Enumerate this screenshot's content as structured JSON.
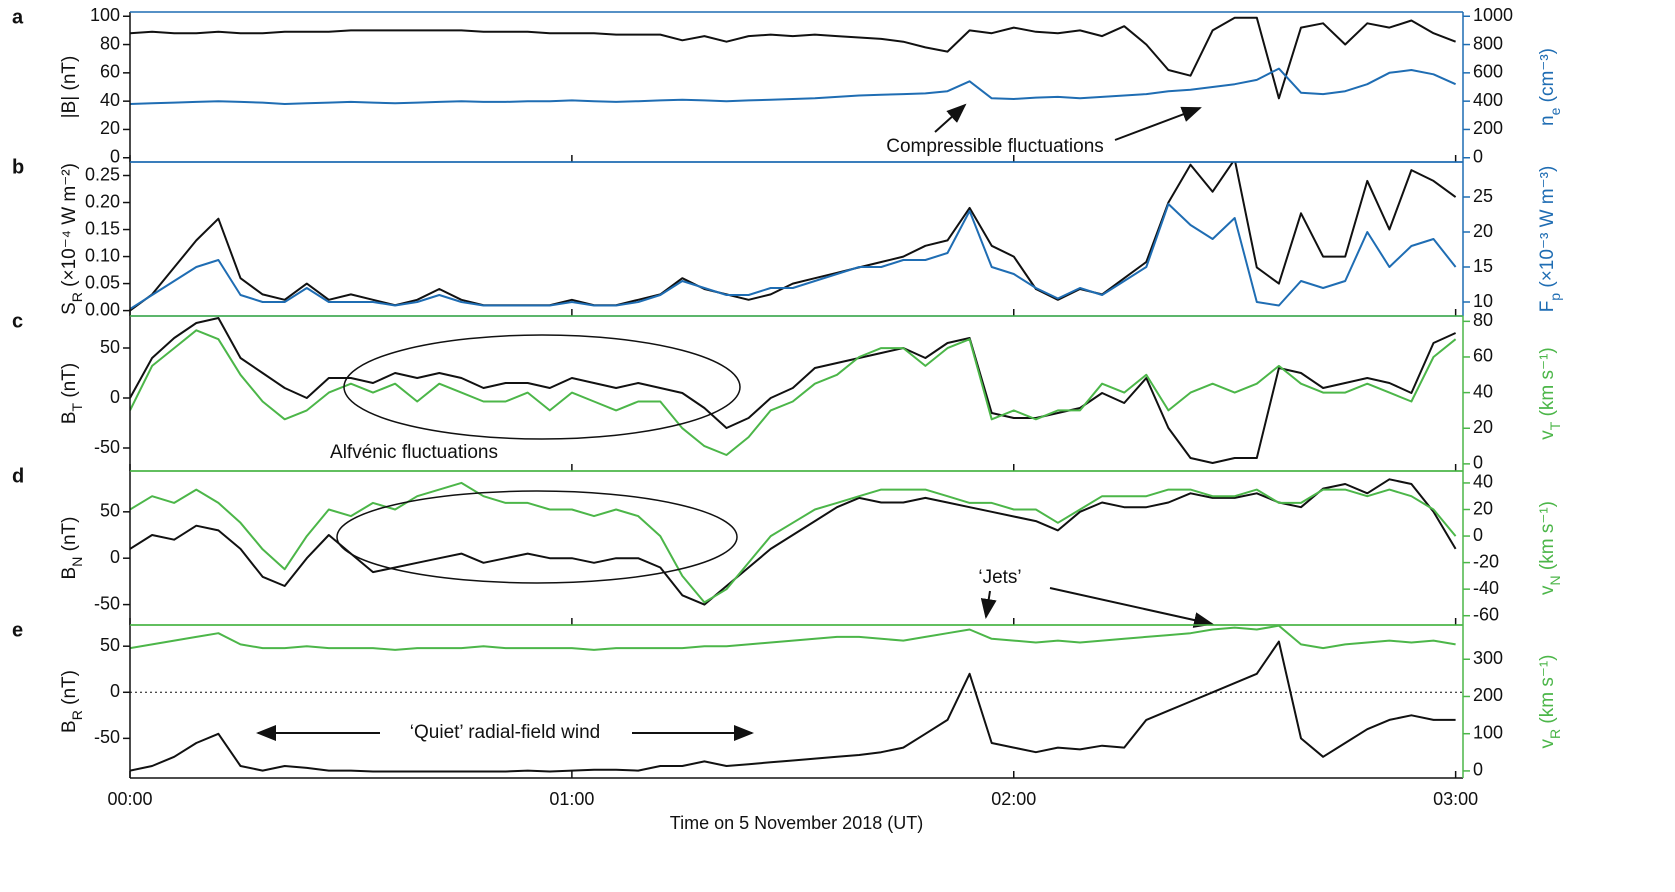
{
  "chart_data": [
    {
      "type": "line",
      "panel": "a",
      "ylabel": [
        "|B| (nT)"
      ],
      "y2label": [
        "n",
        "e",
        " (cm⁻³)"
      ],
      "x": [
        0,
        3,
        6,
        9,
        12,
        15,
        18,
        21,
        24,
        27,
        30,
        33,
        36,
        39,
        42,
        45,
        48,
        51,
        54,
        57,
        60,
        63,
        66,
        69,
        72,
        75,
        78,
        81,
        84,
        87,
        90,
        93,
        96,
        99,
        102,
        105,
        108,
        111,
        114,
        117,
        120,
        123,
        126,
        129,
        132,
        135,
        138,
        141,
        144,
        147,
        150,
        153,
        156,
        159,
        162,
        165,
        168,
        171,
        174,
        177,
        180
      ],
      "xlim": [
        0,
        181
      ],
      "xticks": [
        0,
        60,
        120,
        180
      ],
      "ylim": [
        -3,
        103
      ],
      "yticks": [
        0,
        20,
        40,
        60,
        80,
        100
      ],
      "y2lim": [
        -30,
        1030
      ],
      "y2ticks": [
        0,
        200,
        400,
        600,
        800,
        1000
      ],
      "y2color": "#1f6db3",
      "series": [
        {
          "color": "#111111",
          "values": [
            88,
            89,
            88,
            88,
            89,
            88,
            88,
            89,
            89,
            89,
            90,
            90,
            90,
            90,
            90,
            90,
            89,
            89,
            89,
            88,
            88,
            88,
            87,
            87,
            87,
            83,
            86,
            82,
            86,
            87,
            86,
            87,
            86,
            85,
            84,
            82,
            78,
            75,
            90,
            88,
            92,
            89,
            88,
            90,
            86,
            93,
            80,
            62,
            58,
            90,
            99,
            99,
            42,
            92,
            95,
            80,
            95,
            92,
            97,
            88,
            82
          ]
        },
        {
          "color": "#1f6db3",
          "axis": "y2",
          "values": [
            380,
            385,
            390,
            395,
            400,
            395,
            390,
            380,
            385,
            390,
            395,
            390,
            385,
            390,
            395,
            400,
            395,
            395,
            400,
            400,
            405,
            400,
            395,
            400,
            405,
            410,
            405,
            400,
            405,
            410,
            415,
            420,
            430,
            440,
            445,
            450,
            455,
            470,
            540,
            420,
            415,
            425,
            430,
            420,
            430,
            440,
            450,
            470,
            480,
            500,
            520,
            550,
            630,
            460,
            450,
            470,
            520,
            600,
            620,
            590,
            520
          ]
        }
      ],
      "annotations": [
        "Compressible fluctuations"
      ]
    },
    {
      "type": "line",
      "panel": "b",
      "ylabel": [
        "S",
        "R",
        " (×10⁻⁴ W m⁻²)"
      ],
      "y2label": [
        "F",
        "p",
        " (×10⁻³ W m⁻³)"
      ],
      "x": [
        0,
        3,
        6,
        9,
        12,
        15,
        18,
        21,
        24,
        27,
        30,
        33,
        36,
        39,
        42,
        45,
        48,
        51,
        54,
        57,
        60,
        63,
        66,
        69,
        72,
        75,
        78,
        81,
        84,
        87,
        90,
        93,
        96,
        99,
        102,
        105,
        108,
        111,
        114,
        117,
        120,
        123,
        126,
        129,
        132,
        135,
        138,
        141,
        144,
        147,
        150,
        153,
        156,
        159,
        162,
        165,
        168,
        171,
        174,
        177,
        180
      ],
      "xlim": [
        0,
        181
      ],
      "xticks": [
        0,
        60,
        120,
        180
      ],
      "ylim": [
        -0.01,
        0.275
      ],
      "yticks": [
        {
          "value": 0,
          "label": "0.00"
        },
        {
          "value": 0.05,
          "label": "0.05"
        },
        {
          "value": 0.1,
          "label": "0.10"
        },
        {
          "value": 0.15,
          "label": "0.15"
        },
        {
          "value": 0.2,
          "label": "0.20"
        },
        {
          "value": 0.25,
          "label": "0.25"
        }
      ],
      "y2lim": [
        8,
        30
      ],
      "y2ticks": [
        10,
        15,
        20,
        25
      ],
      "y2color": "#1f6db3",
      "series": [
        {
          "color": "#111111",
          "values": [
            0,
            0.03,
            0.08,
            0.13,
            0.17,
            0.06,
            0.03,
            0.02,
            0.05,
            0.02,
            0.03,
            0.02,
            0.01,
            0.02,
            0.04,
            0.02,
            0.01,
            0.01,
            0.01,
            0.01,
            0.02,
            0.01,
            0.01,
            0.02,
            0.03,
            0.06,
            0.04,
            0.03,
            0.02,
            0.03,
            0.05,
            0.06,
            0.07,
            0.08,
            0.09,
            0.1,
            0.12,
            0.13,
            0.19,
            0.12,
            0.1,
            0.04,
            0.02,
            0.04,
            0.03,
            0.06,
            0.09,
            0.2,
            0.27,
            0.22,
            0.28,
            0.08,
            0.05,
            0.18,
            0.1,
            0.1,
            0.24,
            0.15,
            0.26,
            0.24,
            0.21
          ]
        },
        {
          "color": "#1f6db3",
          "axis": "y2",
          "values": [
            9,
            11,
            13,
            15,
            16,
            11,
            10,
            10,
            12,
            10,
            10,
            10,
            9.5,
            10,
            11,
            10,
            9.5,
            9.5,
            9.5,
            9.5,
            10,
            9.5,
            9.5,
            10,
            11,
            13,
            12,
            11,
            11,
            12,
            12,
            13,
            14,
            15,
            15,
            16,
            16,
            17,
            23,
            15,
            14,
            12,
            10.5,
            12,
            11,
            13,
            15,
            24,
            21,
            19,
            22,
            10,
            9.5,
            13,
            12,
            13,
            20,
            15,
            18,
            19,
            15
          ]
        }
      ],
      "annotations": []
    },
    {
      "type": "line",
      "panel": "c",
      "ylabel": [
        "B",
        "T",
        " (nT)"
      ],
      "y2label": [
        "v",
        "T",
        " (km s⁻¹)"
      ],
      "x": [
        0,
        3,
        6,
        9,
        12,
        15,
        18,
        21,
        24,
        27,
        30,
        33,
        36,
        39,
        42,
        45,
        48,
        51,
        54,
        57,
        60,
        63,
        66,
        69,
        72,
        75,
        78,
        81,
        84,
        87,
        90,
        93,
        96,
        99,
        102,
        105,
        108,
        111,
        114,
        117,
        120,
        123,
        126,
        129,
        132,
        135,
        138,
        141,
        144,
        147,
        150,
        153,
        156,
        159,
        162,
        165,
        168,
        171,
        174,
        177,
        180
      ],
      "xlim": [
        0,
        181
      ],
      "xticks": [
        0,
        60,
        120,
        180
      ],
      "ylim": [
        -73,
        82
      ],
      "yticks": [
        -50,
        0,
        50
      ],
      "y2lim": [
        -4,
        83
      ],
      "y2ticks": [
        0,
        20,
        40,
        60,
        80
      ],
      "y2color": "#4cb649",
      "series": [
        {
          "color": "#111111",
          "values": [
            0,
            40,
            60,
            75,
            80,
            40,
            25,
            10,
            0,
            20,
            20,
            15,
            25,
            20,
            25,
            20,
            10,
            15,
            15,
            10,
            20,
            15,
            10,
            15,
            10,
            5,
            -10,
            -30,
            -20,
            0,
            10,
            30,
            35,
            40,
            45,
            50,
            40,
            55,
            60,
            -15,
            -20,
            -20,
            -15,
            -10,
            5,
            -5,
            20,
            -30,
            -60,
            -65,
            -60,
            -60,
            30,
            25,
            10,
            15,
            20,
            15,
            5,
            55,
            65
          ]
        },
        {
          "color": "#4cb649",
          "axis": "y2",
          "values": [
            30,
            55,
            65,
            75,
            70,
            50,
            35,
            25,
            30,
            40,
            45,
            40,
            45,
            35,
            45,
            40,
            35,
            35,
            40,
            30,
            40,
            35,
            30,
            35,
            35,
            20,
            10,
            5,
            15,
            30,
            35,
            45,
            50,
            60,
            65,
            65,
            55,
            65,
            70,
            25,
            30,
            25,
            30,
            30,
            45,
            40,
            50,
            30,
            40,
            45,
            40,
            45,
            55,
            45,
            40,
            40,
            45,
            40,
            35,
            60,
            70
          ]
        }
      ],
      "annotations": [
        "Alfvénic fluctuations"
      ]
    },
    {
      "type": "line",
      "panel": "d",
      "ylabel": [
        "B",
        "N",
        " (nT)"
      ],
      "y2label": [
        "v",
        "N",
        " (km s⁻¹)"
      ],
      "x": [
        0,
        3,
        6,
        9,
        12,
        15,
        18,
        21,
        24,
        27,
        30,
        33,
        36,
        39,
        42,
        45,
        48,
        51,
        54,
        57,
        60,
        63,
        66,
        69,
        72,
        75,
        78,
        81,
        84,
        87,
        90,
        93,
        96,
        99,
        102,
        105,
        108,
        111,
        114,
        117,
        120,
        123,
        126,
        129,
        132,
        135,
        138,
        141,
        144,
        147,
        150,
        153,
        156,
        159,
        162,
        165,
        168,
        171,
        174,
        177,
        180
      ],
      "xlim": [
        0,
        181
      ],
      "xticks": [
        0,
        60,
        120,
        180
      ],
      "ylim": [
        -72,
        94
      ],
      "yticks": [
        -50,
        0,
        50
      ],
      "y2lim": [
        -67,
        49
      ],
      "y2ticks": [
        -60,
        -40,
        -20,
        0,
        20,
        40
      ],
      "y2color": "#4cb649",
      "series": [
        {
          "color": "#111111",
          "values": [
            10,
            25,
            20,
            35,
            30,
            10,
            -20,
            -30,
            0,
            25,
            5,
            -15,
            -10,
            -5,
            0,
            5,
            -5,
            0,
            5,
            0,
            0,
            -5,
            0,
            0,
            -10,
            -40,
            -50,
            -30,
            -10,
            10,
            25,
            40,
            55,
            65,
            60,
            60,
            65,
            60,
            55,
            50,
            45,
            40,
            30,
            50,
            60,
            55,
            55,
            60,
            70,
            65,
            65,
            70,
            60,
            55,
            75,
            80,
            70,
            85,
            80,
            50,
            10
          ]
        },
        {
          "color": "#4cb649",
          "axis": "y2",
          "values": [
            20,
            30,
            25,
            35,
            25,
            10,
            -10,
            -25,
            0,
            20,
            15,
            25,
            20,
            30,
            35,
            40,
            30,
            25,
            25,
            20,
            20,
            15,
            20,
            15,
            0,
            -30,
            -50,
            -40,
            -20,
            0,
            10,
            20,
            25,
            30,
            35,
            35,
            35,
            30,
            25,
            25,
            20,
            20,
            10,
            20,
            30,
            30,
            30,
            35,
            35,
            30,
            30,
            35,
            25,
            25,
            35,
            35,
            30,
            35,
            30,
            20,
            0
          ]
        }
      ],
      "annotations": [
        "‘Jets’"
      ]
    },
    {
      "type": "line",
      "panel": "e",
      "ylabel": [
        "B",
        "R",
        " (nT)"
      ],
      "y2label": [
        "v",
        "R",
        " (km s⁻¹)"
      ],
      "x": [
        0,
        3,
        6,
        9,
        12,
        15,
        18,
        21,
        24,
        27,
        30,
        33,
        36,
        39,
        42,
        45,
        48,
        51,
        54,
        57,
        60,
        63,
        66,
        69,
        72,
        75,
        78,
        81,
        84,
        87,
        90,
        93,
        96,
        99,
        102,
        105,
        108,
        111,
        114,
        117,
        120,
        123,
        126,
        129,
        132,
        135,
        138,
        141,
        144,
        147,
        150,
        153,
        156,
        159,
        162,
        165,
        168,
        171,
        174,
        177,
        180
      ],
      "xlim": [
        0,
        181
      ],
      "xticks": [
        {
          "value": 0,
          "label": "00:00"
        },
        {
          "value": 60,
          "label": "01:00"
        },
        {
          "value": 120,
          "label": "02:00"
        },
        {
          "value": 180,
          "label": "03:00"
        }
      ],
      "xlabel": "Time on 5 November 2018 (UT)",
      "ylim": [
        -93,
        73
      ],
      "yticks": [
        -50,
        0,
        50
      ],
      "zero_line": true,
      "y2lim": [
        -19,
        392
      ],
      "y2ticks": [
        0,
        100,
        200,
        300
      ],
      "y2color": "#4cb649",
      "series": [
        {
          "color": "#111111",
          "values": [
            -85,
            -80,
            -70,
            -55,
            -45,
            -80,
            -85,
            -80,
            -82,
            -85,
            -85,
            -86,
            -86,
            -86,
            -86,
            -86,
            -86,
            -86,
            -85,
            -86,
            -85,
            -84,
            -84,
            -85,
            -80,
            -80,
            -75,
            -80,
            -78,
            -76,
            -74,
            -72,
            -70,
            -68,
            -65,
            -60,
            -45,
            -30,
            20,
            -55,
            -60,
            -65,
            -60,
            -62,
            -58,
            -60,
            -30,
            -20,
            -10,
            0,
            10,
            20,
            55,
            -50,
            -70,
            -55,
            -40,
            -30,
            -25,
            -30,
            -30
          ]
        },
        {
          "color": "#4cb649",
          "axis": "y2",
          "values": [
            330,
            340,
            350,
            360,
            370,
            340,
            330,
            330,
            335,
            330,
            330,
            330,
            325,
            330,
            330,
            330,
            335,
            330,
            330,
            330,
            330,
            325,
            330,
            330,
            330,
            330,
            335,
            335,
            340,
            345,
            350,
            355,
            360,
            360,
            355,
            350,
            360,
            370,
            380,
            355,
            350,
            345,
            350,
            345,
            350,
            355,
            360,
            365,
            370,
            380,
            385,
            380,
            390,
            340,
            330,
            340,
            345,
            350,
            345,
            350,
            340
          ]
        }
      ],
      "annotations": [
        "‘Quiet’ radial-field wind"
      ]
    }
  ]
}
